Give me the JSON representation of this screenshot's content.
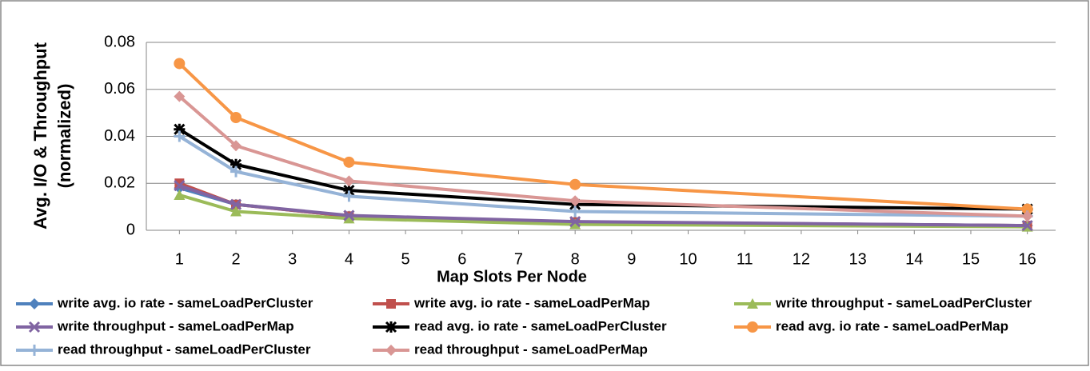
{
  "chart_data": {
    "type": "line",
    "ylabel": [
      "Avg. I/O & Throughput",
      "(normalized)"
    ],
    "xlabel": "Map Slots Per Node",
    "x": [
      1,
      2,
      4,
      8,
      16
    ],
    "xlim": [
      0.5,
      16.5
    ],
    "xticks": [
      1,
      2,
      3,
      4,
      5,
      6,
      7,
      8,
      9,
      10,
      11,
      12,
      13,
      14,
      15,
      16
    ],
    "ylim": [
      0,
      0.08
    ],
    "yticks": [
      0,
      0.02,
      0.04,
      0.06,
      0.08
    ],
    "grid": true,
    "legend": "bottom",
    "series": [
      {
        "name": "write avg. io rate - sameLoadPerCluster",
        "color": "#4f81bd",
        "marker": "diamond",
        "values": [
          0.018,
          0.011,
          0.006,
          0.0035,
          0.002
        ]
      },
      {
        "name": "write avg. io rate - sameLoadPerMap",
        "color": "#c0504d",
        "marker": "square",
        "values": [
          0.02,
          0.011,
          0.006,
          0.0035,
          0.002
        ]
      },
      {
        "name": "write throughput - sameLoadPerCluster",
        "color": "#9bbb59",
        "marker": "triangle",
        "values": [
          0.015,
          0.008,
          0.005,
          0.0025,
          0.0015
        ]
      },
      {
        "name": "write throughput - sameLoadPerMap",
        "color": "#8064a2",
        "marker": "x",
        "values": [
          0.019,
          0.011,
          0.0063,
          0.0037,
          0.002
        ]
      },
      {
        "name": "read avg. io rate - sameLoadPerCluster",
        "color": "#000000",
        "marker": "star",
        "values": [
          0.043,
          0.028,
          0.017,
          0.011,
          0.009
        ]
      },
      {
        "name": "read avg. io rate - sameLoadPerMap",
        "color": "#f79646",
        "marker": "circle",
        "values": [
          0.071,
          0.048,
          0.029,
          0.0195,
          0.009
        ]
      },
      {
        "name": "read throughput - sameLoadPerCluster",
        "color": "#95b3d7",
        "marker": "plus",
        "values": [
          0.04,
          0.025,
          0.0145,
          0.008,
          0.006
        ]
      },
      {
        "name": "read throughput - sameLoadPerMap",
        "color": "#d99694",
        "marker": "diamond",
        "values": [
          0.057,
          0.036,
          0.021,
          0.0125,
          0.006
        ]
      }
    ]
  }
}
